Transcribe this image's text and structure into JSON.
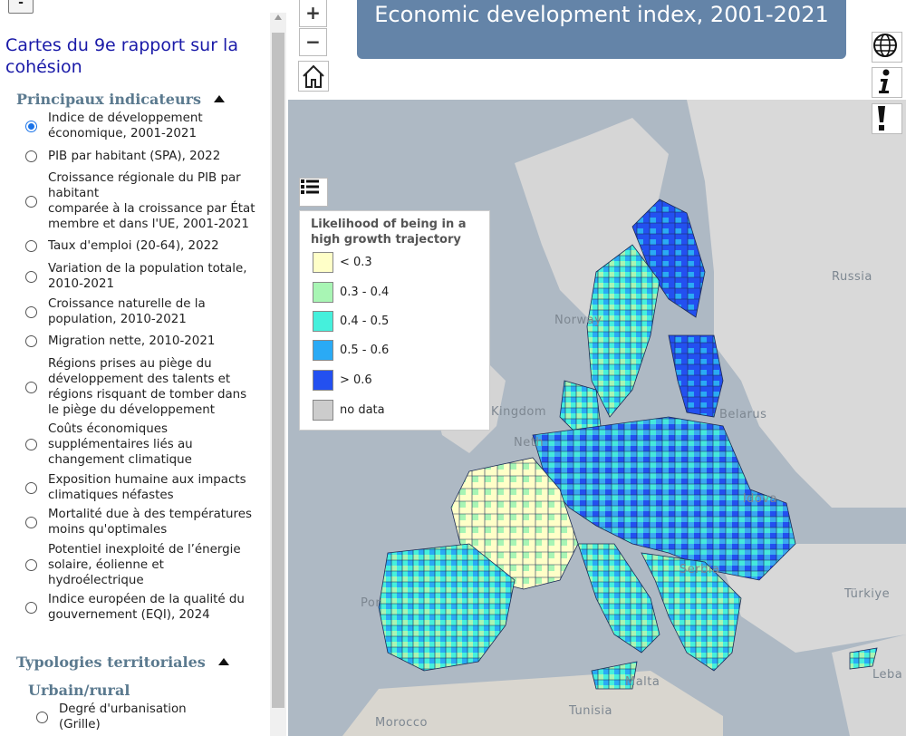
{
  "sidebar": {
    "collapse_label": "-",
    "title": "Cartes du 9e rapport sur la cohésion",
    "sections": [
      {
        "label": "Principaux indicateurs"
      },
      {
        "label": "Typologies territoriales"
      }
    ],
    "indicators": [
      {
        "label": "Indice de développement\néconomique, 2001-2021",
        "selected": true
      },
      {
        "label": "PIB par habitant (SPA), 2022"
      },
      {
        "label": "Croissance régionale du PIB par\nhabitant\ncomparée à la croissance par État\nmembre et dans l'UE, 2001-2021"
      },
      {
        "label": "Taux d'emploi (20-64), 2022"
      },
      {
        "label": "Variation de la population totale,\n2010-2021"
      },
      {
        "label": "Croissance naturelle de la\npopulation, 2010-2021"
      },
      {
        "label": "Migration nette, 2010-2021"
      },
      {
        "label": "Régions prises au piège du\ndéveloppement des talents et\nrégions risquant de tomber dans\nle piège du développement"
      },
      {
        "label": "Coûts économiques\nsupplémentaires liés au\nchangement climatique"
      },
      {
        "label": "Exposition humaine aux impacts\nclimatiques néfastes"
      },
      {
        "label": "Mortalité due à des températures\nmoins qu'optimales"
      },
      {
        "label": "Potentiel inexploité de l’énergie\nsolaire, éolienne et\nhydroélectrique"
      },
      {
        "label": "Indice européen de la qualité du\ngouvernement (EQI), 2024"
      }
    ],
    "subsection": {
      "label": "Urbain/rural"
    },
    "typology_items": [
      {
        "label": "Degré d'urbanisation\n(Grille)"
      }
    ]
  },
  "map": {
    "title": "Economic development index, 2001-2021",
    "zoom_in_label": "+",
    "zoom_out_label": "−",
    "legend": {
      "title": "Likelihood of being in a high growth trajectory",
      "items": [
        {
          "label": "< 0.3",
          "color": "#ffffc8"
        },
        {
          "label": "0.3 - 0.4",
          "color": "#a8f5b4"
        },
        {
          "label": "0.4 - 0.5",
          "color": "#45f0dc"
        },
        {
          "label": "0.5 - 0.6",
          "color": "#2aaaf5"
        },
        {
          "label": "> 0.6",
          "color": "#2350f0"
        },
        {
          "label": "no data",
          "color": "#cccccc"
        }
      ]
    },
    "place_labels": [
      "Russia",
      "Norway",
      "Belarus",
      "Kingdom",
      "Neth",
      "ldova",
      "Serbia",
      "Türkiye",
      "Malta",
      "Tunisia",
      "Morocco",
      "Leba",
      "Por"
    ]
  }
}
